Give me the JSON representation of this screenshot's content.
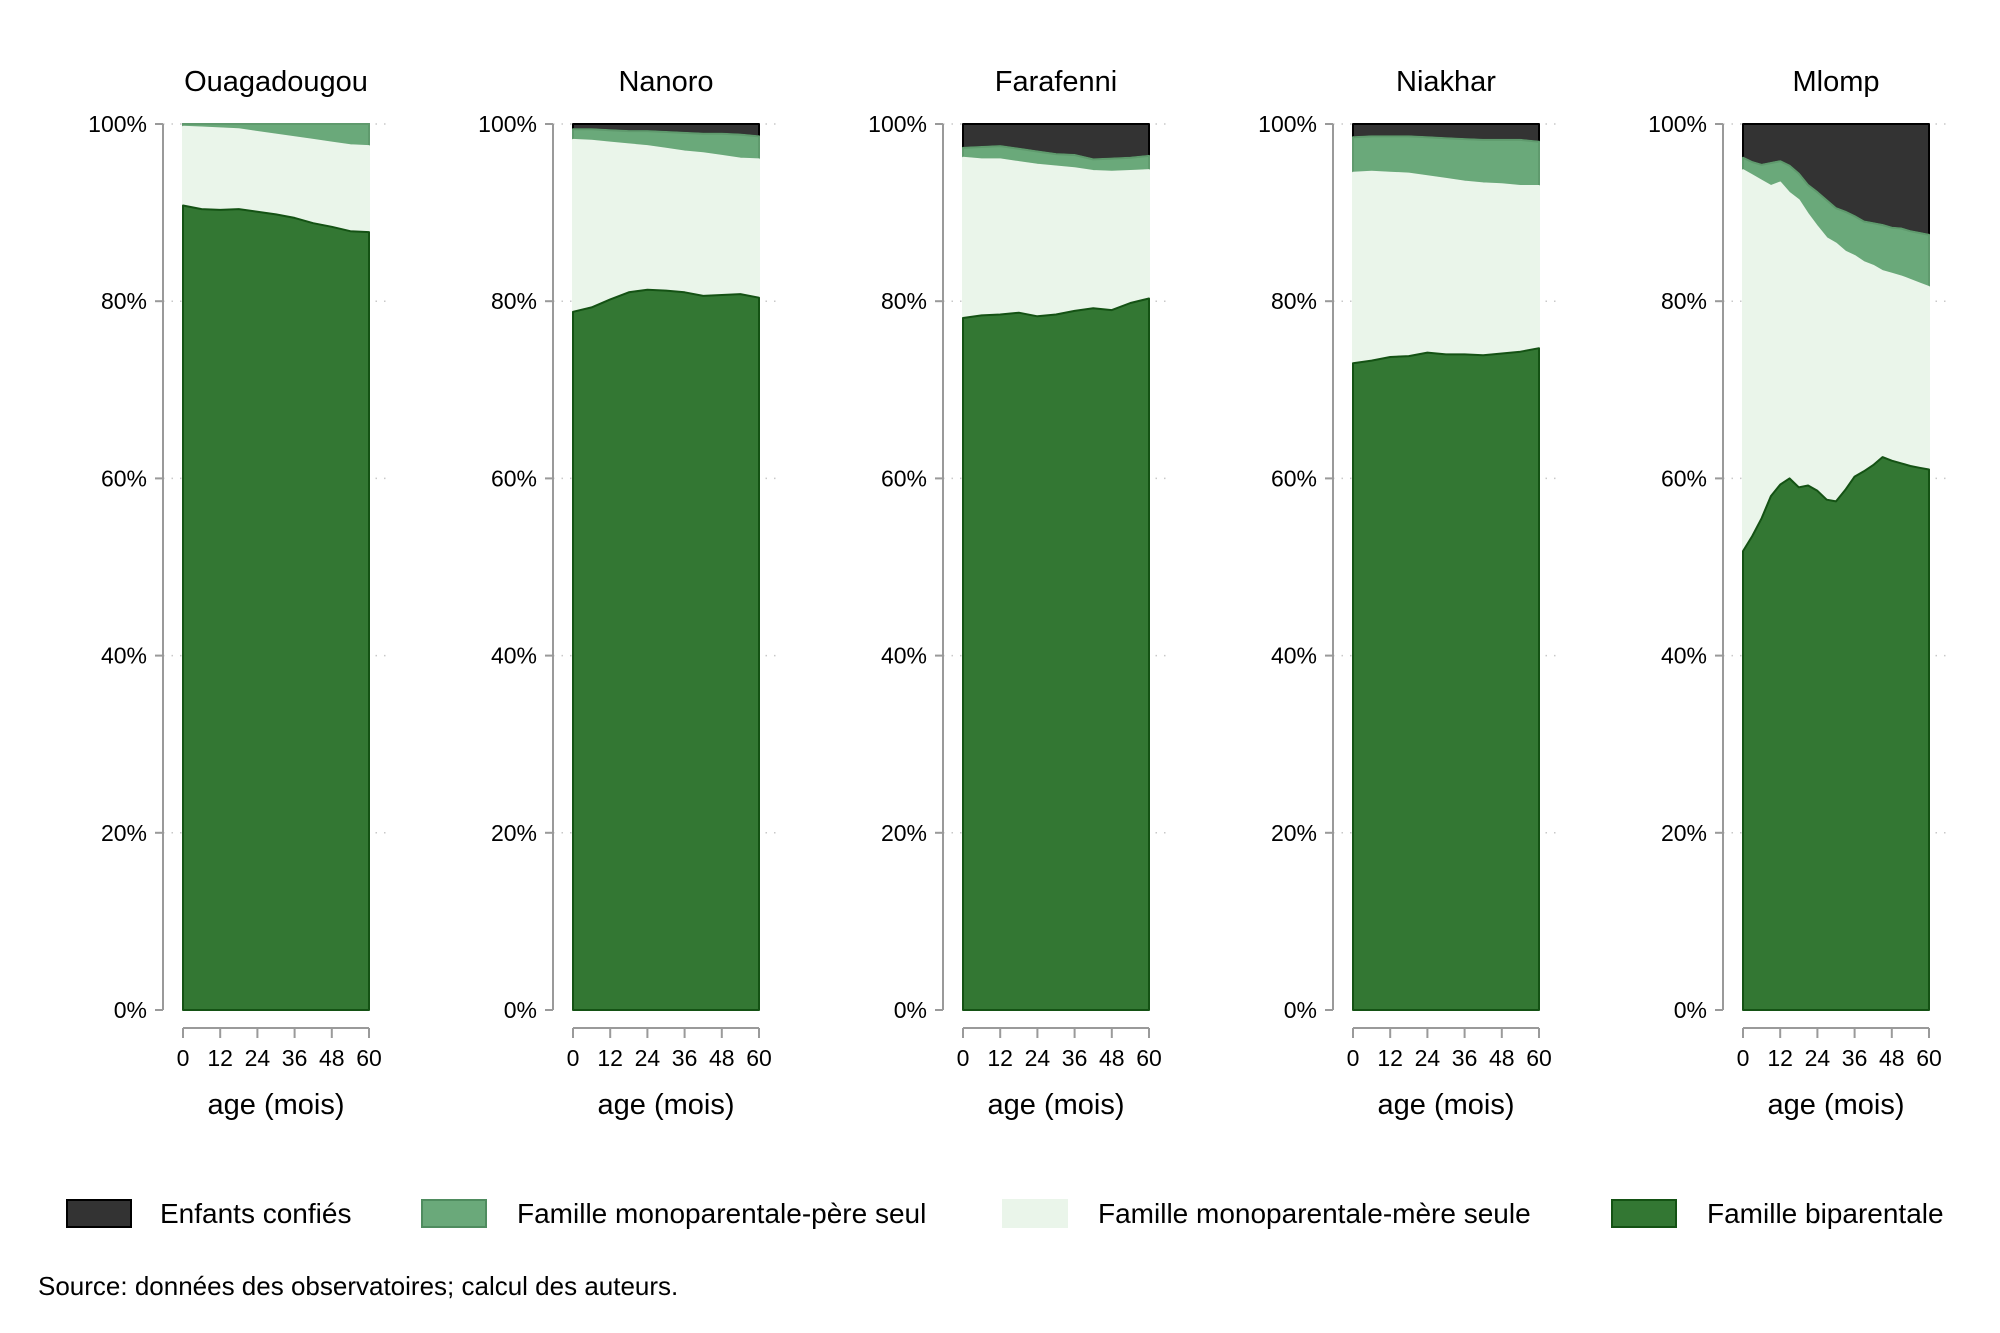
{
  "chart_data": {
    "type": "area",
    "stacked": true,
    "xlabel": "age (mois)",
    "x_ticks": [
      0,
      12,
      24,
      36,
      48,
      60
    ],
    "xlim": [
      0,
      60
    ],
    "ylim": [
      0,
      100
    ],
    "y_ticks": [
      "0%",
      "20%",
      "40%",
      "60%",
      "80%",
      "100%"
    ],
    "grid": "dotted horizontal at y ticks",
    "legend_position": "bottom",
    "legend": [
      "Enfants confiés",
      "Famille monoparentale-père seul",
      "Famille monoparentale-mère seule",
      "Famille biparentale"
    ],
    "colors": {
      "Enfants confiés": "#333333",
      "Famille monoparentale-père seul": "#6aa97a",
      "Famille monoparentale-mère seule": "#eaf5ea",
      "Famille biparentale": "#337733",
      "outline": "#145214"
    },
    "panels": [
      {
        "title": "Ouagadougou",
        "x": [
          0,
          6,
          12,
          18,
          24,
          30,
          36,
          42,
          48,
          54,
          60
        ],
        "biparentale": [
          90.8,
          90.4,
          90.3,
          90.4,
          90.1,
          89.8,
          89.4,
          88.8,
          88.4,
          87.9,
          87.8
        ],
        "mere_seule_cum": [
          99.7,
          99.6,
          99.5,
          99.4,
          99.1,
          98.8,
          98.5,
          98.2,
          97.9,
          97.6,
          97.5
        ],
        "pere_seul_cum": [
          100,
          100,
          100,
          100,
          100,
          100,
          100,
          100,
          100,
          100,
          100
        ],
        "confies_cum": [
          100,
          100,
          100,
          100,
          100,
          100,
          100,
          100,
          100,
          100,
          100
        ]
      },
      {
        "title": "Nanoro",
        "x": [
          0,
          6,
          12,
          18,
          24,
          30,
          36,
          42,
          48,
          54,
          60
        ],
        "biparentale": [
          78.8,
          79.3,
          80.2,
          81.0,
          81.3,
          81.2,
          81.0,
          80.6,
          80.7,
          80.8,
          80.4
        ],
        "mere_seule_cum": [
          98.2,
          98.1,
          97.9,
          97.7,
          97.5,
          97.2,
          96.9,
          96.7,
          96.4,
          96.1,
          96.0
        ],
        "pere_seul_cum": [
          99.4,
          99.4,
          99.3,
          99.2,
          99.2,
          99.1,
          99.0,
          98.9,
          98.9,
          98.8,
          98.6
        ],
        "confies_cum": [
          100,
          100,
          100,
          100,
          100,
          100,
          100,
          100,
          100,
          100,
          100
        ]
      },
      {
        "title": "Farafenni",
        "x": [
          0,
          6,
          12,
          18,
          24,
          30,
          36,
          42,
          48,
          54,
          60
        ],
        "biparentale": [
          78.1,
          78.4,
          78.5,
          78.7,
          78.3,
          78.5,
          78.9,
          79.2,
          79.0,
          79.8,
          80.3
        ],
        "mere_seule_cum": [
          96.2,
          96.0,
          96.0,
          95.7,
          95.4,
          95.2,
          95.0,
          94.7,
          94.6,
          94.7,
          94.8
        ],
        "pere_seul_cum": [
          97.3,
          97.4,
          97.5,
          97.2,
          96.9,
          96.6,
          96.5,
          96.0,
          96.1,
          96.2,
          96.4
        ],
        "confies_cum": [
          100,
          100,
          100,
          100,
          100,
          100,
          100,
          100,
          100,
          100,
          100
        ]
      },
      {
        "title": "Niakhar",
        "x": [
          0,
          6,
          12,
          18,
          24,
          30,
          36,
          42,
          48,
          54,
          60
        ],
        "biparentale": [
          73.0,
          73.3,
          73.7,
          73.8,
          74.2,
          74.0,
          74.0,
          73.9,
          74.1,
          74.3,
          74.7
        ],
        "mere_seule_cum": [
          94.5,
          94.6,
          94.5,
          94.4,
          94.1,
          93.8,
          93.5,
          93.3,
          93.2,
          93.0,
          93.0
        ],
        "pere_seul_cum": [
          98.5,
          98.6,
          98.6,
          98.6,
          98.5,
          98.4,
          98.3,
          98.2,
          98.2,
          98.2,
          98.0
        ],
        "confies_cum": [
          100,
          100,
          100,
          100,
          100,
          100,
          100,
          100,
          100,
          100,
          100
        ]
      },
      {
        "title": "Mlomp",
        "x": [
          0,
          3,
          6,
          9,
          12,
          15,
          18,
          21,
          24,
          27,
          30,
          33,
          36,
          39,
          42,
          45,
          48,
          51,
          54,
          57,
          60
        ],
        "biparentale": [
          51.8,
          53.5,
          55.5,
          58.0,
          59.3,
          60.0,
          59.0,
          59.2,
          58.6,
          57.6,
          57.4,
          58.7,
          60.2,
          60.8,
          61.5,
          62.4,
          62.0,
          61.7,
          61.4,
          61.2,
          61.0
        ],
        "mere_seule_cum": [
          94.8,
          94.2,
          93.6,
          93.0,
          93.4,
          92.2,
          91.4,
          89.8,
          88.4,
          87.1,
          86.5,
          85.6,
          85.1,
          84.4,
          84.0,
          83.4,
          83.1,
          82.8,
          82.4,
          82.0,
          81.6
        ],
        "pere_seul_cum": [
          96.2,
          95.7,
          95.4,
          95.6,
          95.8,
          95.3,
          94.4,
          93.1,
          92.3,
          91.4,
          90.5,
          90.1,
          89.6,
          89.0,
          88.8,
          88.6,
          88.3,
          88.2,
          87.9,
          87.7,
          87.5
        ],
        "confies_cum": [
          100,
          100,
          100,
          100,
          100,
          100,
          100,
          100,
          100,
          100,
          100,
          100,
          100,
          100,
          100,
          100,
          100,
          100,
          100,
          100,
          100
        ]
      }
    ],
    "source": "Source: données des observatoires; calcul des auteurs."
  }
}
